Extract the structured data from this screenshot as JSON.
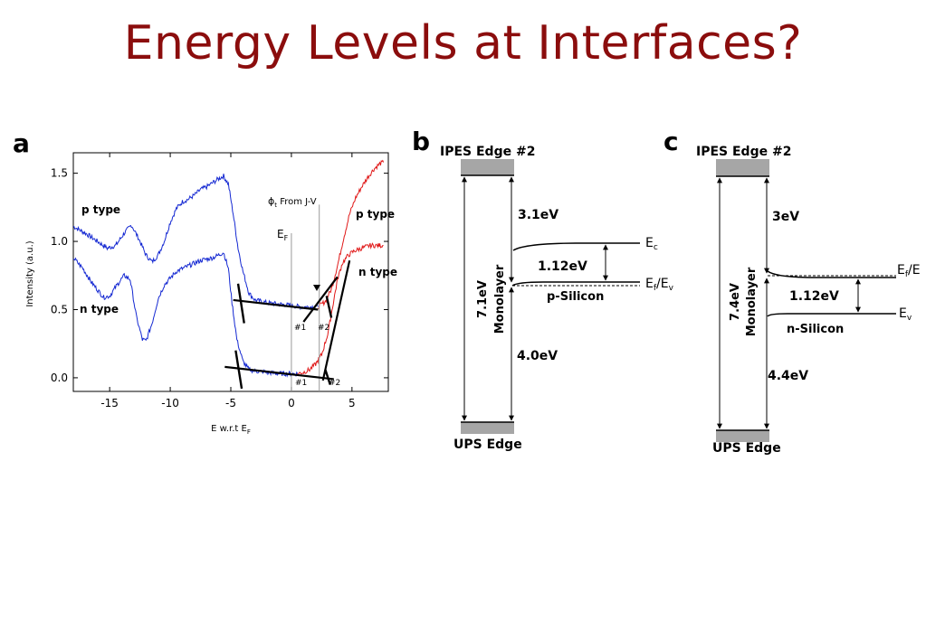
{
  "slide": {
    "title": "Energy Levels at Interfaces?",
    "colors": {
      "title": "#8b0d0d",
      "p_type_curve": "#1428d2",
      "n_type_curve": "#e01818",
      "band_block": "#a6a6a6"
    }
  },
  "panel_a": {
    "letter": "a",
    "chart_data": {
      "type": "line",
      "xlabel": "E w.r.t E",
      "xlabel_sub": "F",
      "ylabel": "Intensity (a.u.)",
      "xlim": [
        -18,
        8
      ],
      "ylim": [
        -0.1,
        1.65
      ],
      "x_ticks": [
        -15,
        -10,
        -5,
        0,
        5
      ],
      "y_ticks": [
        0.0,
        0.5,
        1.0,
        1.5
      ],
      "x_tick_labels": [
        "-15",
        "-10",
        "-5",
        "0",
        "5"
      ],
      "y_tick_labels": [
        "0.0",
        "0.5",
        "1.0",
        "1.5"
      ],
      "series": [
        {
          "name": "p type",
          "color": "#1428d2",
          "points": [
            [
              -18,
              1.11
            ],
            [
              -17,
              1.06
            ],
            [
              -16,
              1.0
            ],
            [
              -15.2,
              0.95
            ],
            [
              -14.5,
              0.97
            ],
            [
              -13.8,
              1.06
            ],
            [
              -13.2,
              1.12
            ],
            [
              -12.6,
              1.02
            ],
            [
              -12,
              0.9
            ],
            [
              -11.5,
              0.85
            ],
            [
              -11,
              0.9
            ],
            [
              -10.5,
              1.0
            ],
            [
              -10,
              1.14
            ],
            [
              -9.5,
              1.24
            ],
            [
              -9,
              1.29
            ],
            [
              -8.5,
              1.31
            ],
            [
              -8,
              1.34
            ],
            [
              -7.5,
              1.38
            ],
            [
              -7,
              1.4
            ],
            [
              -6.5,
              1.43
            ],
            [
              -6,
              1.46
            ],
            [
              -5.6,
              1.48
            ],
            [
              -5.2,
              1.42
            ],
            [
              -4.8,
              1.2
            ],
            [
              -4.4,
              0.95
            ],
            [
              -4,
              0.78
            ],
            [
              -3.5,
              0.62
            ],
            [
              -3,
              0.57
            ],
            [
              -2,
              0.55
            ],
            [
              -1,
              0.54
            ],
            [
              0,
              0.53
            ],
            [
              0.8,
              0.52
            ],
            [
              1.5,
              0.52
            ],
            [
              2.2,
              0.52
            ]
          ]
        },
        {
          "name": "p type",
          "color": "#e01818",
          "points": [
            [
              2.2,
              0.52
            ],
            [
              2.8,
              0.56
            ],
            [
              3.3,
              0.65
            ],
            [
              3.8,
              0.82
            ],
            [
              4.3,
              1.02
            ],
            [
              4.8,
              1.2
            ],
            [
              5.3,
              1.32
            ],
            [
              5.8,
              1.4
            ],
            [
              6.3,
              1.47
            ],
            [
              6.8,
              1.53
            ],
            [
              7.3,
              1.57
            ],
            [
              7.6,
              1.58
            ]
          ]
        },
        {
          "name": "n type",
          "color": "#1428d2",
          "points": [
            [
              -18,
              0.88
            ],
            [
              -17.2,
              0.8
            ],
            [
              -16.5,
              0.7
            ],
            [
              -15.5,
              0.59
            ],
            [
              -15,
              0.6
            ],
            [
              -14.4,
              0.68
            ],
            [
              -13.8,
              0.75
            ],
            [
              -13.3,
              0.72
            ],
            [
              -12.8,
              0.45
            ],
            [
              -12.3,
              0.28
            ],
            [
              -12,
              0.27
            ],
            [
              -11.5,
              0.4
            ],
            [
              -11,
              0.58
            ],
            [
              -10.5,
              0.68
            ],
            [
              -10,
              0.73
            ],
            [
              -9.5,
              0.78
            ],
            [
              -9,
              0.8
            ],
            [
              -8.5,
              0.82
            ],
            [
              -8,
              0.84
            ],
            [
              -7.5,
              0.86
            ],
            [
              -7,
              0.87
            ],
            [
              -6.5,
              0.88
            ],
            [
              -6,
              0.9
            ],
            [
              -5.6,
              0.92
            ],
            [
              -5.2,
              0.8
            ],
            [
              -4.9,
              0.55
            ],
            [
              -4.5,
              0.28
            ],
            [
              -4,
              0.12
            ],
            [
              -3.5,
              0.06
            ],
            [
              -3,
              0.05
            ],
            [
              -2,
              0.04
            ],
            [
              -1,
              0.03
            ],
            [
              0,
              0.03
            ],
            [
              0.5,
              0.03
            ]
          ]
        },
        {
          "name": "n type",
          "color": "#e01818",
          "points": [
            [
              0.5,
              0.03
            ],
            [
              1,
              0.04
            ],
            [
              1.5,
              0.06
            ],
            [
              2,
              0.1
            ],
            [
              2.5,
              0.17
            ],
            [
              3,
              0.32
            ],
            [
              3.4,
              0.52
            ],
            [
              3.8,
              0.72
            ],
            [
              4.2,
              0.84
            ],
            [
              4.7,
              0.9
            ],
            [
              5.2,
              0.93
            ],
            [
              5.8,
              0.95
            ],
            [
              6.5,
              0.97
            ],
            [
              7.3,
              0.97
            ],
            [
              7.6,
              0.97
            ]
          ]
        }
      ],
      "fit_lines": [
        {
          "x": [
            -4.8,
            2.2
          ],
          "y": [
            0.57,
            0.5
          ]
        },
        {
          "x": [
            -5.5,
            3.5
          ],
          "y": [
            0.08,
            -0.01
          ]
        },
        {
          "x": [
            1.0,
            3.8
          ],
          "y": [
            0.41,
            0.74
          ]
        },
        {
          "x": [
            2.6,
            4.8
          ],
          "y": [
            -0.02,
            0.86
          ]
        }
      ],
      "tick_marks": [
        {
          "x": [
            -4.4,
            -3.9
          ],
          "y": [
            0.69,
            0.4
          ]
        },
        {
          "x": [
            -4.6,
            -4.1
          ],
          "y": [
            0.2,
            -0.08
          ]
        },
        {
          "x": [
            2.9,
            3.3
          ],
          "y": [
            0.6,
            0.44
          ]
        },
        {
          "x": [
            2.8,
            3.2
          ],
          "y": [
            0.06,
            -0.05
          ]
        }
      ],
      "guide_lines": [
        {
          "label": "E_F",
          "x": 0,
          "y": [
            -0.1,
            1.06
          ]
        },
        {
          "label": "phi_t",
          "x": 2.3,
          "y": [
            -0.1,
            1.27
          ]
        }
      ],
      "annotations": {
        "p_type_left": "p type",
        "n_type_left": "n type",
        "p_type_right": "p type",
        "n_type_right": "n type",
        "ef_label": "E",
        "ef_sub": "F",
        "phi_label": "ϕ",
        "phi_sub": "t",
        "phi_text": " From J-V",
        "hash1_top": "#1",
        "hash2_top": "#2",
        "hash1_bottom": "#1",
        "hash2_bottom": "#2"
      }
    }
  },
  "panel_b": {
    "letter": "b",
    "ipes_label": "IPES Edge #2",
    "ups_label": "UPS Edge",
    "gap_top": "3.1eV",
    "gap_bottom": "4.0eV",
    "total": "7.1eV",
    "monolayer": "Monolayer",
    "bandgap": "1.12eV",
    "ec_label": "E",
    "ec_sub": "c",
    "ef_label": "E",
    "ef_sub": "f",
    "ev_label": "/E",
    "ev_sub": "v",
    "silicon_label": "p-Silicon"
  },
  "panel_c": {
    "letter": "c",
    "ipes_label": "IPES Edge #2",
    "ups_label": "UPS Edge",
    "gap_top": "3eV",
    "gap_bottom": "4.4eV",
    "total": "7.4eV",
    "monolayer": "Monolayer",
    "bandgap": "1.12eV",
    "ef_label": "E",
    "ef_sub": "f",
    "ef_suffix": "/E",
    "ev_label": "E",
    "ev_sub": "v",
    "silicon_label": "n-Silicon"
  }
}
